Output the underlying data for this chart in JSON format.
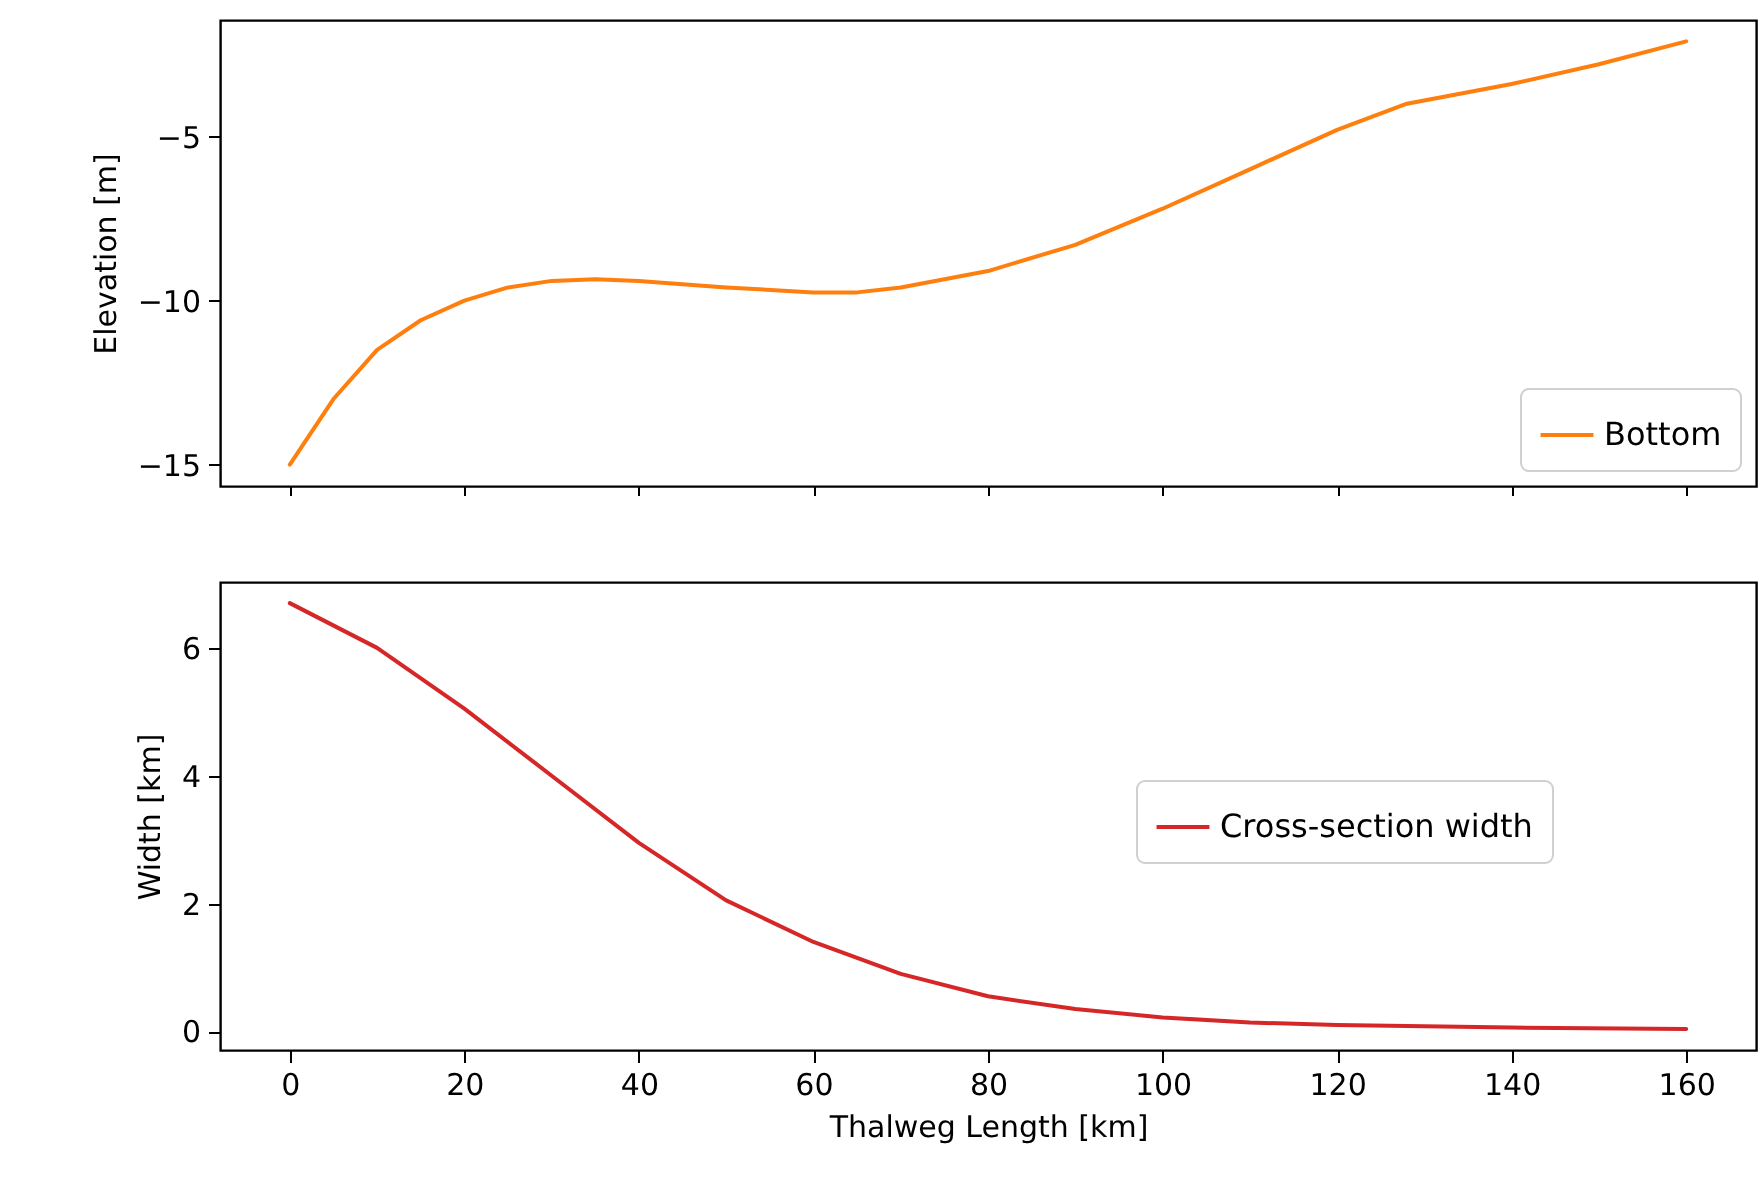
{
  "chart_data": [
    {
      "type": "line",
      "ylabel": "Elevation [m]",
      "xlim": [
        -8,
        168
      ],
      "xticks": [
        0,
        20,
        40,
        60,
        80,
        100,
        120,
        140,
        160
      ],
      "ylim": [
        -15.65,
        -1.45
      ],
      "yticks": [
        -15,
        -10,
        -5
      ],
      "tick_labels": "y",
      "grid": false,
      "legend": "bottom right",
      "x": [
        0,
        5,
        10,
        15,
        20,
        25,
        30,
        35,
        40,
        50,
        60,
        65,
        70,
        80,
        90,
        100,
        110,
        120,
        128,
        140,
        150,
        160
      ],
      "series": [
        {
          "name": "Bottom",
          "color": "#ff7f0e",
          "values": [
            -15,
            -13.0,
            -11.5,
            -10.6,
            -10.0,
            -9.6,
            -9.4,
            -9.35,
            -9.4,
            -9.6,
            -9.75,
            -9.75,
            -9.6,
            -9.1,
            -8.3,
            -7.2,
            -6.0,
            -4.8,
            -4.0,
            -3.4,
            -2.8,
            -2.1
          ]
        }
      ]
    },
    {
      "type": "line",
      "xlabel": "Thalweg Length [km]",
      "ylabel": "Width [km]",
      "xlim": [
        -8,
        168
      ],
      "xticks": [
        0,
        20,
        40,
        60,
        80,
        100,
        120,
        140,
        160
      ],
      "ylim": [
        -0.29,
        7.03
      ],
      "yticks": [
        0,
        2,
        4,
        6
      ],
      "grid": false,
      "legend": "right",
      "x": [
        0,
        10,
        20,
        30,
        40,
        50,
        60,
        70,
        80,
        90,
        100,
        110,
        120,
        140,
        160
      ],
      "series": [
        {
          "name": "Cross-section width",
          "color": "#d62728",
          "values": [
            6.7,
            6.0,
            5.05,
            4.0,
            2.95,
            2.05,
            1.4,
            0.9,
            0.55,
            0.35,
            0.22,
            0.14,
            0.1,
            0.06,
            0.04
          ]
        }
      ]
    }
  ]
}
